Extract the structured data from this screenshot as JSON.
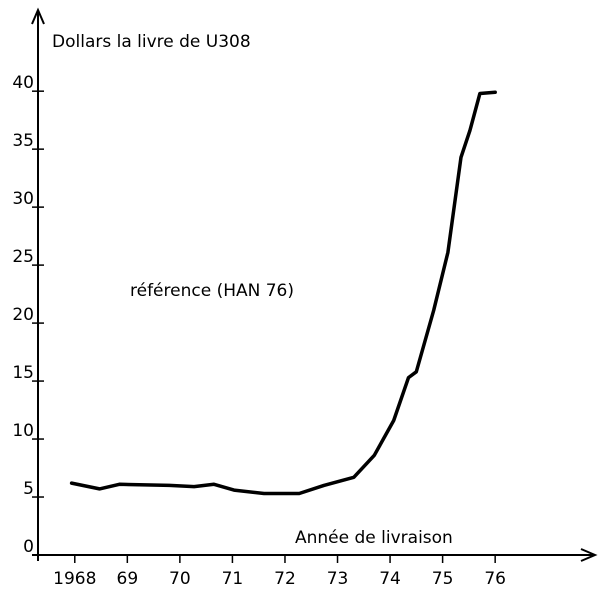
{
  "chart_data": {
    "type": "line",
    "ylabel": "Dollars la livre de U308",
    "xlabel": "Année de livraison",
    "annotation": "référence (HAN 76)",
    "color": "#000000",
    "x": [
      1967.94,
      1968.47,
      1968.85,
      1969.8,
      1970.27,
      1970.65,
      1971.03,
      1971.6,
      1972.27,
      1972.74,
      1973.31,
      1973.7,
      1974.07,
      1974.35,
      1974.5,
      1974.83,
      1975.1,
      1975.35,
      1975.52,
      1975.71,
      1976.0
    ],
    "values": [
      6.2,
      5.7,
      6.1,
      6.0,
      5.9,
      6.1,
      5.6,
      5.3,
      5.3,
      6.0,
      6.7,
      8.6,
      11.6,
      15.3,
      15.8,
      21.1,
      26.1,
      34.3,
      36.6,
      39.8,
      39.9
    ],
    "xlim": [
      1967.3,
      1977.9
    ],
    "ylim": [
      0,
      47
    ],
    "xticks": [
      {
        "value": 1968,
        "label": "1968"
      },
      {
        "value": 1969,
        "label": "69"
      },
      {
        "value": 1970,
        "label": "70"
      },
      {
        "value": 1971,
        "label": "71"
      },
      {
        "value": 1972,
        "label": "72"
      },
      {
        "value": 1973,
        "label": "73"
      },
      {
        "value": 1974,
        "label": "74"
      },
      {
        "value": 1975,
        "label": "75"
      },
      {
        "value": 1976,
        "label": "76"
      }
    ],
    "yticks": [
      0,
      5,
      10,
      15,
      20,
      25,
      30,
      35,
      40
    ]
  }
}
